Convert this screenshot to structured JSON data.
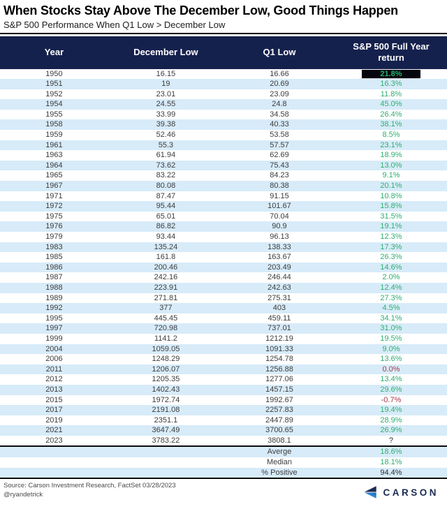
{
  "header": {
    "title": "When Stocks Stay Above The December Low, Good Things Happen",
    "subtitle": "S&P 500 Performance When Q1 Low > December Low"
  },
  "chart_data": {
    "type": "table",
    "title": "When Stocks Stay Above The December Low, Good Things Happen",
    "subtitle": "S&P 500 Performance When Q1 Low > December Low",
    "columns": [
      "Year",
      "December Low",
      "Q1 Low",
      "S&P 500 Full Year return"
    ],
    "rows": [
      {
        "year": "1950",
        "december_low": "16.15",
        "q1_low": "16.66",
        "full_year_return": "21.8%",
        "style": "highlight"
      },
      {
        "year": "1951",
        "december_low": "19",
        "q1_low": "20.69",
        "full_year_return": "16.3%",
        "style": "green"
      },
      {
        "year": "1952",
        "december_low": "23.01",
        "q1_low": "23.09",
        "full_year_return": "11.8%",
        "style": "green"
      },
      {
        "year": "1954",
        "december_low": "24.55",
        "q1_low": "24.8",
        "full_year_return": "45.0%",
        "style": "green"
      },
      {
        "year": "1955",
        "december_low": "33.99",
        "q1_low": "34.58",
        "full_year_return": "26.4%",
        "style": "green"
      },
      {
        "year": "1958",
        "december_low": "39.38",
        "q1_low": "40.33",
        "full_year_return": "38.1%",
        "style": "green"
      },
      {
        "year": "1959",
        "december_low": "52.46",
        "q1_low": "53.58",
        "full_year_return": "8.5%",
        "style": "green"
      },
      {
        "year": "1961",
        "december_low": "55.3",
        "q1_low": "57.57",
        "full_year_return": "23.1%",
        "style": "green"
      },
      {
        "year": "1963",
        "december_low": "61.94",
        "q1_low": "62.69",
        "full_year_return": "18.9%",
        "style": "green"
      },
      {
        "year": "1964",
        "december_low": "73.62",
        "q1_low": "75.43",
        "full_year_return": "13.0%",
        "style": "green"
      },
      {
        "year": "1965",
        "december_low": "83.22",
        "q1_low": "84.23",
        "full_year_return": "9.1%",
        "style": "green"
      },
      {
        "year": "1967",
        "december_low": "80.08",
        "q1_low": "80.38",
        "full_year_return": "20.1%",
        "style": "green"
      },
      {
        "year": "1971",
        "december_low": "87.47",
        "q1_low": "91.15",
        "full_year_return": "10.8%",
        "style": "green"
      },
      {
        "year": "1972",
        "december_low": "95.44",
        "q1_low": "101.67",
        "full_year_return": "15.8%",
        "style": "green"
      },
      {
        "year": "1975",
        "december_low": "65.01",
        "q1_low": "70.04",
        "full_year_return": "31.5%",
        "style": "green"
      },
      {
        "year": "1976",
        "december_low": "86.82",
        "q1_low": "90.9",
        "full_year_return": "19.1%",
        "style": "green"
      },
      {
        "year": "1979",
        "december_low": "93.44",
        "q1_low": "96.13",
        "full_year_return": "12.3%",
        "style": "green"
      },
      {
        "year": "1983",
        "december_low": "135.24",
        "q1_low": "138.33",
        "full_year_return": "17.3%",
        "style": "green"
      },
      {
        "year": "1985",
        "december_low": "161.8",
        "q1_low": "163.67",
        "full_year_return": "26.3%",
        "style": "green"
      },
      {
        "year": "1986",
        "december_low": "200.46",
        "q1_low": "203.49",
        "full_year_return": "14.6%",
        "style": "green"
      },
      {
        "year": "1987",
        "december_low": "242.16",
        "q1_low": "246.44",
        "full_year_return": "2.0%",
        "style": "green"
      },
      {
        "year": "1988",
        "december_low": "223.91",
        "q1_low": "242.63",
        "full_year_return": "12.4%",
        "style": "green"
      },
      {
        "year": "1989",
        "december_low": "271.81",
        "q1_low": "275.31",
        "full_year_return": "27.3%",
        "style": "green"
      },
      {
        "year": "1992",
        "december_low": "377",
        "q1_low": "403",
        "full_year_return": "4.5%",
        "style": "green"
      },
      {
        "year": "1995",
        "december_low": "445.45",
        "q1_low": "459.11",
        "full_year_return": "34.1%",
        "style": "green"
      },
      {
        "year": "1997",
        "december_low": "720.98",
        "q1_low": "737.01",
        "full_year_return": "31.0%",
        "style": "green"
      },
      {
        "year": "1999",
        "december_low": "1141.2",
        "q1_low": "1212.19",
        "full_year_return": "19.5%",
        "style": "green"
      },
      {
        "year": "2004",
        "december_low": "1059.05",
        "q1_low": "1091.33",
        "full_year_return": "9.0%",
        "style": "green"
      },
      {
        "year": "2006",
        "december_low": "1248.29",
        "q1_low": "1254.78",
        "full_year_return": "13.6%",
        "style": "green"
      },
      {
        "year": "2011",
        "december_low": "1206.07",
        "q1_low": "1256.88",
        "full_year_return": "0.0%",
        "style": "red"
      },
      {
        "year": "2012",
        "december_low": "1205.35",
        "q1_low": "1277.06",
        "full_year_return": "13.4%",
        "style": "green"
      },
      {
        "year": "2013",
        "december_low": "1402.43",
        "q1_low": "1457.15",
        "full_year_return": "29.6%",
        "style": "green"
      },
      {
        "year": "2015",
        "december_low": "1972.74",
        "q1_low": "1992.67",
        "full_year_return": "-0.7%",
        "style": "red"
      },
      {
        "year": "2017",
        "december_low": "2191.08",
        "q1_low": "2257.83",
        "full_year_return": "19.4%",
        "style": "green"
      },
      {
        "year": "2019",
        "december_low": "2351.1",
        "q1_low": "2447.89",
        "full_year_return": "28.9%",
        "style": "green"
      },
      {
        "year": "2021",
        "december_low": "3647.49",
        "q1_low": "3700.65",
        "full_year_return": "26.9%",
        "style": "green"
      },
      {
        "year": "2023",
        "december_low": "3783.22",
        "q1_low": "3808.1",
        "full_year_return": "?",
        "style": "neutral"
      }
    ],
    "summary": [
      {
        "label": "Averge",
        "value": "18.6%",
        "style": "green"
      },
      {
        "label": "Median",
        "value": "18.1%",
        "style": "green"
      },
      {
        "label": "% Positive",
        "value": "94.4%",
        "style": "neutral"
      }
    ],
    "legend_position": "none",
    "grid": false
  },
  "footer": {
    "source_line1": "Source: Carson Investment Research, FactSet 03/28/2023",
    "source_line2": "@ryandetrick",
    "logo_text": "CARSON"
  },
  "colors": {
    "header_bg": "#15214d",
    "row_alt": "#d7ebf9",
    "green": "#2eaf6f",
    "red": "#a73b4d",
    "text": "#3d3d3d",
    "hl_bg": "#06060f",
    "hl_text": "#1db56b",
    "logo_navy": "#1c2b52",
    "logo_blue": "#2f8fd6"
  }
}
